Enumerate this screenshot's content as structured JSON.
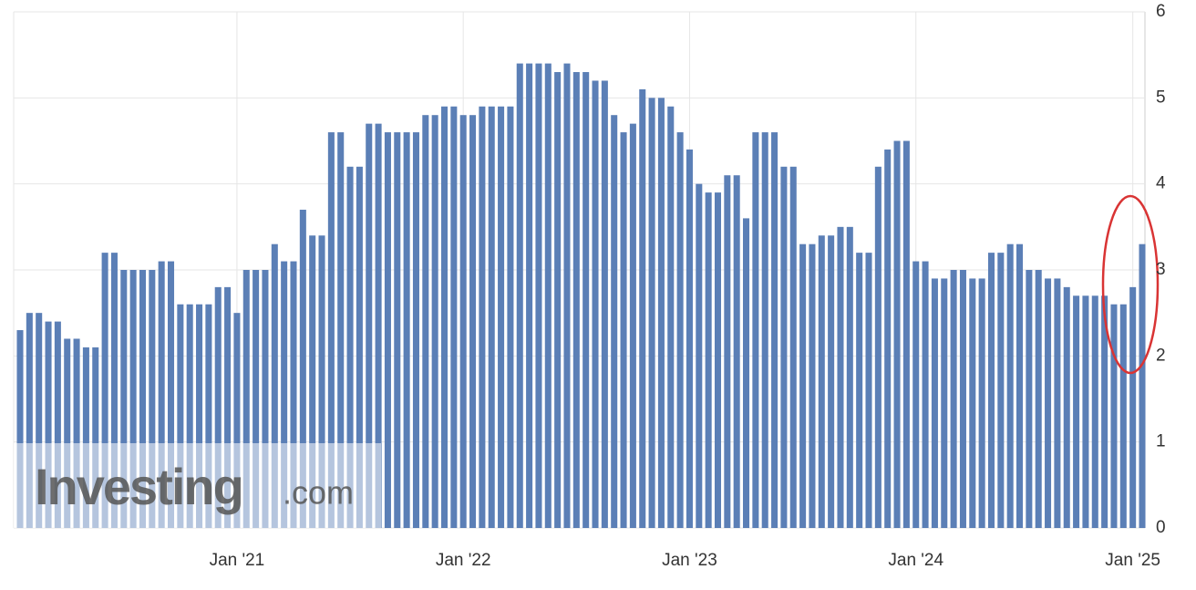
{
  "chart_data": {
    "type": "bar",
    "watermark_brand": "Investing",
    "watermark_suffix": ".com",
    "categories": [
      null,
      null,
      null,
      null,
      null,
      null,
      null,
      null,
      null,
      null,
      null,
      null,
      null,
      null,
      null,
      null,
      null,
      null,
      null,
      null,
      null,
      null,
      null,
      "Jan '21",
      null,
      null,
      null,
      null,
      null,
      null,
      null,
      null,
      null,
      null,
      null,
      null,
      null,
      null,
      null,
      null,
      null,
      null,
      null,
      null,
      null,
      null,
      null,
      "Jan '22",
      null,
      null,
      null,
      null,
      null,
      null,
      null,
      null,
      null,
      null,
      null,
      null,
      null,
      null,
      null,
      null,
      null,
      null,
      null,
      null,
      null,
      null,
      null,
      "Jan '23",
      null,
      null,
      null,
      null,
      null,
      null,
      null,
      null,
      null,
      null,
      null,
      null,
      null,
      null,
      null,
      null,
      null,
      null,
      null,
      null,
      null,
      null,
      null,
      "Jan '24",
      null,
      null,
      null,
      null,
      null,
      null,
      null,
      null,
      null,
      null,
      null,
      null,
      null,
      null,
      null,
      null,
      null,
      null,
      null,
      null,
      null,
      null,
      "Jan '25",
      null
    ],
    "values": [
      2.3,
      2.5,
      2.5,
      2.4,
      2.4,
      2.2,
      2.2,
      2.1,
      2.1,
      3.2,
      3.2,
      3.0,
      3.0,
      3.0,
      3.0,
      3.1,
      3.1,
      2.6,
      2.6,
      2.6,
      2.6,
      2.8,
      2.8,
      2.5,
      3.0,
      3.0,
      3.0,
      3.3,
      3.1,
      3.1,
      3.7,
      3.4,
      3.4,
      4.6,
      4.6,
      4.2,
      4.2,
      4.7,
      4.7,
      4.6,
      4.6,
      4.6,
      4.6,
      4.8,
      4.8,
      4.9,
      4.9,
      4.8,
      4.8,
      4.9,
      4.9,
      4.9,
      4.9,
      5.4,
      5.4,
      5.4,
      5.4,
      5.3,
      5.4,
      5.3,
      5.3,
      5.2,
      5.2,
      4.8,
      4.6,
      4.7,
      5.1,
      5.0,
      5.0,
      4.9,
      4.6,
      4.4,
      4.0,
      3.9,
      3.9,
      4.1,
      4.1,
      3.6,
      4.6,
      4.6,
      4.6,
      4.2,
      4.2,
      3.3,
      3.3,
      3.4,
      3.4,
      3.5,
      3.5,
      3.2,
      3.2,
      4.2,
      4.4,
      4.5,
      4.5,
      3.1,
      3.1,
      2.9,
      2.9,
      3.0,
      3.0,
      2.9,
      2.9,
      3.2,
      3.2,
      3.3,
      3.3,
      3.0,
      3.0,
      2.9,
      2.9,
      2.8,
      2.7,
      2.7,
      2.7,
      2.7,
      2.6,
      2.6,
      2.8,
      3.3
    ],
    "color": "#5b7fb6",
    "ylim": [
      0,
      6
    ],
    "yticks": [
      0,
      1,
      2,
      3,
      4,
      5,
      6
    ],
    "grid": true,
    "y_axis_side": "right"
  }
}
